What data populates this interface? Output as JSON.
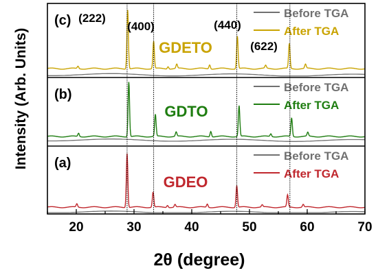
{
  "chart_data": {
    "type": "line",
    "xlabel": "2θ (degree)",
    "ylabel": "Intensity (Arb. Units)",
    "xlim": [
      15,
      70
    ],
    "xticks": [
      20,
      30,
      40,
      50,
      60,
      70
    ],
    "grid": false,
    "line_colors": {
      "before": "#707070"
    },
    "reference_lines": [
      {
        "x": 28.8,
        "label": "(222)"
      },
      {
        "x": 33.4,
        "label": "(400)"
      },
      {
        "x": 47.8,
        "label": "(440)"
      },
      {
        "x": 57.0,
        "label": "(622)"
      }
    ],
    "panels": [
      {
        "id": "c",
        "panel_label": "(c)",
        "sample_label": "GDETO",
        "color": "#c9a300",
        "baseline": 0.12,
        "legend": [
          "Before TGA",
          "After TGA"
        ],
        "before_offset": -0.08,
        "peaks": [
          {
            "x": 20.3,
            "h": 0.04
          },
          {
            "x": 28.9,
            "h": 1.0
          },
          {
            "x": 33.4,
            "h": 0.46
          },
          {
            "x": 35.9,
            "h": 0.04
          },
          {
            "x": 37.4,
            "h": 0.07
          },
          {
            "x": 43.1,
            "h": 0.07
          },
          {
            "x": 47.9,
            "h": 0.55
          },
          {
            "x": 52.8,
            "h": 0.05
          },
          {
            "x": 56.9,
            "h": 0.42
          },
          {
            "x": 59.7,
            "h": 0.07
          }
        ]
      },
      {
        "id": "b",
        "panel_label": "(b)",
        "sample_label": "GDTO",
        "color": "#1e7d10",
        "baseline": 0.14,
        "legend": [
          "Before TGA",
          "After TGA"
        ],
        "before_offset": -0.05,
        "peaks": [
          {
            "x": 20.4,
            "h": 0.06
          },
          {
            "x": 29.1,
            "h": 1.0
          },
          {
            "x": 33.7,
            "h": 0.4
          },
          {
            "x": 37.3,
            "h": 0.08
          },
          {
            "x": 43.3,
            "h": 0.1
          },
          {
            "x": 48.2,
            "h": 0.56
          },
          {
            "x": 53.7,
            "h": 0.05
          },
          {
            "x": 57.3,
            "h": 0.34
          },
          {
            "x": 60.1,
            "h": 0.07
          }
        ]
      },
      {
        "id": "a",
        "panel_label": "(a)",
        "sample_label": "GDEO",
        "color": "#c0272d",
        "baseline": 0.1,
        "legend": [
          "Before TGA",
          "After TGA"
        ],
        "before_offset": -0.07,
        "peaks": [
          {
            "x": 20.1,
            "h": 0.06
          },
          {
            "x": 28.8,
            "h": 1.0
          },
          {
            "x": 33.3,
            "h": 0.28
          },
          {
            "x": 35.8,
            "h": 0.04
          },
          {
            "x": 37.1,
            "h": 0.05
          },
          {
            "x": 42.7,
            "h": 0.06
          },
          {
            "x": 47.8,
            "h": 0.4
          },
          {
            "x": 52.2,
            "h": 0.04
          },
          {
            "x": 56.6,
            "h": 0.22
          },
          {
            "x": 59.3,
            "h": 0.05
          }
        ]
      }
    ]
  }
}
